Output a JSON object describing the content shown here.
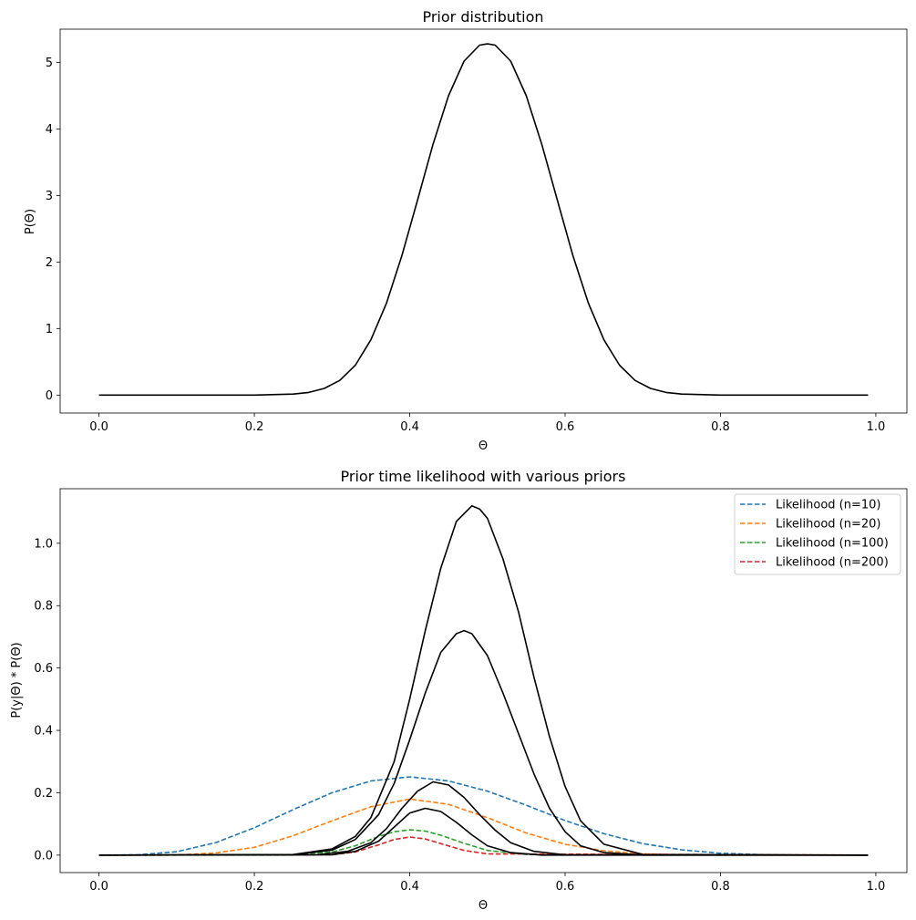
{
  "chart_data": [
    {
      "type": "line",
      "title": "Prior distribution",
      "xlabel": "Θ",
      "ylabel": "P(Θ)",
      "xlim": [
        -0.05,
        1.04
      ],
      "ylim": [
        -0.27,
        5.5
      ],
      "xticks": [
        "0.0",
        "0.2",
        "0.4",
        "0.6",
        "0.8",
        "1.0"
      ],
      "xtick_values": [
        0,
        0.2,
        0.4,
        0.6,
        0.8,
        1.0
      ],
      "yticks": [
        "0",
        "1",
        "2",
        "3",
        "4",
        "5"
      ],
      "ytick_values": [
        0,
        1,
        2,
        3,
        4,
        5
      ],
      "grid": false,
      "legend": null,
      "series": [
        {
          "color": "#000000",
          "style": "solid",
          "x": [
            0.0,
            0.2,
            0.25,
            0.27,
            0.29,
            0.31,
            0.33,
            0.35,
            0.37,
            0.39,
            0.41,
            0.43,
            0.45,
            0.47,
            0.49,
            0.5,
            0.51,
            0.53,
            0.55,
            0.57,
            0.59,
            0.61,
            0.63,
            0.65,
            0.67,
            0.69,
            0.71,
            0.73,
            0.75,
            0.8,
            0.99
          ],
          "y": [
            0.0,
            0.0,
            0.015,
            0.04,
            0.1,
            0.22,
            0.45,
            0.83,
            1.38,
            2.1,
            2.93,
            3.77,
            4.5,
            5.02,
            5.26,
            5.28,
            5.26,
            5.02,
            4.5,
            3.77,
            2.93,
            2.1,
            1.38,
            0.83,
            0.45,
            0.22,
            0.1,
            0.04,
            0.015,
            0.0,
            0.0
          ]
        }
      ]
    },
    {
      "type": "line",
      "title": "Prior time likelihood with various priors",
      "xlabel": "Θ",
      "ylabel": "P(y|Θ) * P(Θ)",
      "xlim": [
        -0.05,
        1.04
      ],
      "ylim": [
        -0.056,
        1.175
      ],
      "xticks": [
        "0.0",
        "0.2",
        "0.4",
        "0.6",
        "0.8",
        "1.0"
      ],
      "xtick_values": [
        0,
        0.2,
        0.4,
        0.6,
        0.8,
        1.0
      ],
      "yticks": [
        "0.0",
        "0.2",
        "0.4",
        "0.6",
        "0.8",
        "1.0"
      ],
      "ytick_values": [
        0,
        0.2,
        0.4,
        0.6,
        0.8,
        1.0
      ],
      "grid": false,
      "legend": "top-right",
      "series": [
        {
          "name": "Likelihood (n=10)",
          "color": "#1f77b4",
          "style": "dashed",
          "x": [
            0.0,
            0.05,
            0.1,
            0.15,
            0.2,
            0.25,
            0.3,
            0.35,
            0.4,
            0.45,
            0.5,
            0.55,
            0.6,
            0.65,
            0.7,
            0.75,
            0.8,
            0.85,
            0.9,
            0.99
          ],
          "y": [
            0.0,
            0.001,
            0.011,
            0.04,
            0.088,
            0.146,
            0.2,
            0.238,
            0.251,
            0.238,
            0.205,
            0.16,
            0.111,
            0.069,
            0.037,
            0.017,
            0.006,
            0.002,
            0.0,
            0.0
          ]
        },
        {
          "name": "Likelihood (n=20)",
          "color": "#ff7f0e",
          "style": "dashed",
          "x": [
            0.0,
            0.1,
            0.15,
            0.2,
            0.25,
            0.3,
            0.35,
            0.4,
            0.45,
            0.5,
            0.55,
            0.6,
            0.65,
            0.7,
            0.75,
            0.8,
            0.99
          ],
          "y": [
            0.0,
            0.0,
            0.007,
            0.025,
            0.062,
            0.11,
            0.155,
            0.18,
            0.163,
            0.12,
            0.071,
            0.035,
            0.014,
            0.004,
            0.001,
            0.0,
            0.0
          ]
        },
        {
          "name": "Likelihood (n=100)",
          "color": "#2ca02c",
          "style": "dashed",
          "x": [
            0.0,
            0.25,
            0.3,
            0.33,
            0.36,
            0.38,
            0.4,
            0.42,
            0.44,
            0.47,
            0.5,
            0.55,
            0.99
          ],
          "y": [
            0.0,
            0.0,
            0.01,
            0.03,
            0.06,
            0.075,
            0.081,
            0.077,
            0.064,
            0.038,
            0.015,
            0.002,
            0.0
          ]
        },
        {
          "name": "Likelihood (n=200)",
          "color": "#d62728",
          "style": "dashed",
          "x": [
            0.0,
            0.3,
            0.33,
            0.36,
            0.38,
            0.4,
            0.42,
            0.44,
            0.47,
            0.5,
            0.99
          ],
          "y": [
            0.0,
            0.001,
            0.01,
            0.033,
            0.05,
            0.058,
            0.052,
            0.037,
            0.015,
            0.004,
            0.0
          ]
        },
        {
          "color": "#000000",
          "style": "solid",
          "x": [
            0.0,
            0.25,
            0.3,
            0.33,
            0.35,
            0.38,
            0.4,
            0.42,
            0.44,
            0.46,
            0.48,
            0.49,
            0.5,
            0.52,
            0.54,
            0.56,
            0.58,
            0.6,
            0.62,
            0.65,
            0.7,
            0.99
          ],
          "y": [
            0.0,
            0.002,
            0.02,
            0.06,
            0.12,
            0.3,
            0.5,
            0.72,
            0.92,
            1.07,
            1.12,
            1.11,
            1.08,
            0.95,
            0.78,
            0.57,
            0.38,
            0.22,
            0.11,
            0.035,
            0.002,
            0.0
          ]
        },
        {
          "color": "#000000",
          "style": "solid",
          "x": [
            0.0,
            0.25,
            0.3,
            0.33,
            0.36,
            0.38,
            0.4,
            0.42,
            0.44,
            0.46,
            0.47,
            0.48,
            0.5,
            0.52,
            0.54,
            0.56,
            0.58,
            0.6,
            0.62,
            0.65,
            0.7,
            0.99
          ],
          "y": [
            0.0,
            0.001,
            0.016,
            0.05,
            0.13,
            0.23,
            0.37,
            0.52,
            0.65,
            0.71,
            0.72,
            0.71,
            0.64,
            0.52,
            0.39,
            0.26,
            0.15,
            0.075,
            0.03,
            0.008,
            0.0,
            0.0
          ]
        },
        {
          "color": "#000000",
          "style": "solid",
          "x": [
            0.0,
            0.28,
            0.32,
            0.35,
            0.37,
            0.39,
            0.41,
            0.43,
            0.45,
            0.47,
            0.49,
            0.51,
            0.53,
            0.56,
            0.6,
            0.99
          ],
          "y": [
            0.0,
            0.001,
            0.012,
            0.04,
            0.085,
            0.15,
            0.205,
            0.235,
            0.225,
            0.185,
            0.13,
            0.08,
            0.04,
            0.012,
            0.001,
            0.0
          ]
        },
        {
          "color": "#000000",
          "style": "solid",
          "x": [
            0.0,
            0.3,
            0.33,
            0.36,
            0.38,
            0.4,
            0.42,
            0.44,
            0.46,
            0.48,
            0.5,
            0.53,
            0.57,
            0.99
          ],
          "y": [
            0.0,
            0.001,
            0.012,
            0.045,
            0.09,
            0.135,
            0.15,
            0.14,
            0.105,
            0.065,
            0.03,
            0.008,
            0.0,
            0.0
          ]
        }
      ]
    }
  ]
}
